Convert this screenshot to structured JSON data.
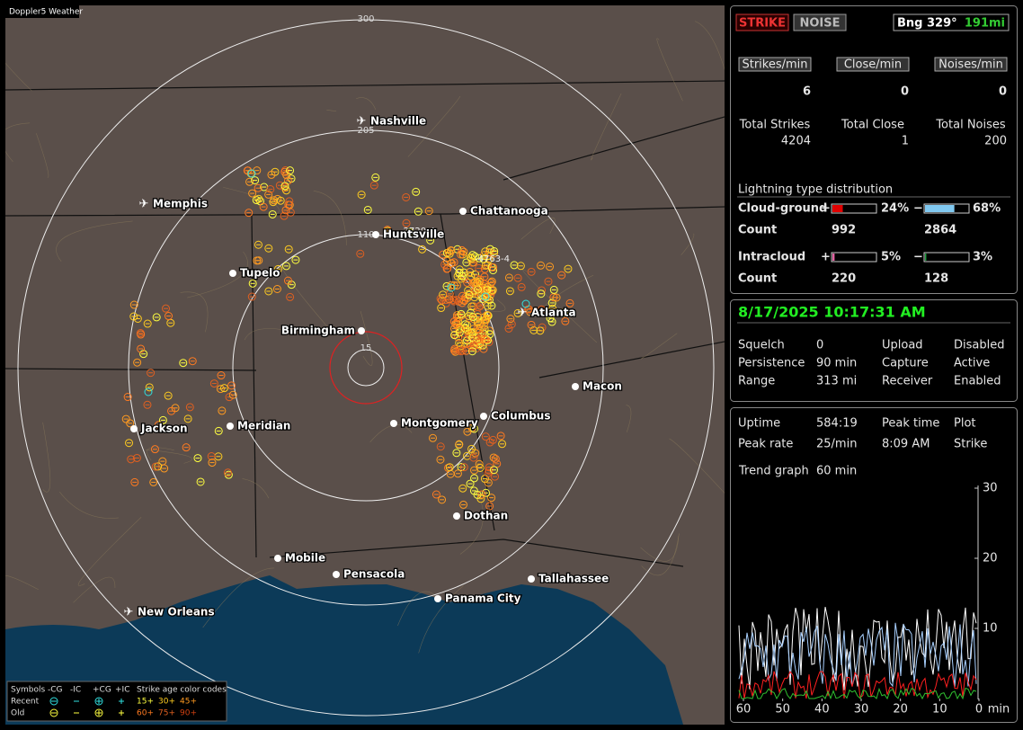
{
  "map": {
    "title": "Doppler5 Weather",
    "ring_labels": [
      "300",
      "205",
      "110",
      "15"
    ],
    "cities": [
      "Nashville",
      "Memphis",
      "Chattanooga",
      "Huntsville",
      "Tupelo",
      "Birmingham",
      "Atlanta",
      "Macon",
      "Montgomery",
      "Columbus",
      "Jackson",
      "Meridian",
      "Dothan",
      "Mobile",
      "Pensacola",
      "Tallahassee",
      "Panama City",
      "New Orleans"
    ],
    "strike_labels": [
      "-2720-4",
      "-4763-4"
    ]
  },
  "legend": {
    "symbols": "Symbols",
    "columns": [
      "-CG",
      "-IC",
      "+CG",
      "+IC"
    ],
    "age_title": "Strike age color codes",
    "recent": "Recent",
    "old": "Old",
    "recent_ages": [
      "15+",
      "30+",
      "45+"
    ],
    "old_ages": [
      "60+",
      "75+",
      "90+"
    ]
  },
  "panel": {
    "strike_button": "STRIKE",
    "noise_button": "NOISE",
    "bearing": "Bng 329°",
    "distance": "191mi",
    "rates": [
      {
        "label": "Strikes/min",
        "value": 6
      },
      {
        "label": "Close/min",
        "value": 0
      },
      {
        "label": "Noises/min",
        "value": 0
      }
    ],
    "totals": [
      {
        "label": "Total Strikes",
        "value": 4204
      },
      {
        "label": "Total Close",
        "value": 1
      },
      {
        "label": "Total Noises",
        "value": 200
      }
    ],
    "distribution_title": "Lightning type distribution",
    "distribution": [
      {
        "label": "Cloud-ground",
        "pos_sign": "+",
        "pos_pct": 24,
        "pos_pct_label": "24%",
        "neg_sign": "−",
        "neg_pct": 68,
        "neg_pct_label": "68%",
        "count_label": "Count",
        "pos_count": 992,
        "neg_count": 2864
      },
      {
        "label": "Intracloud",
        "pos_sign": "+",
        "pos_pct": 5,
        "pos_pct_label": "5%",
        "neg_sign": "−",
        "neg_pct": 3,
        "neg_pct_label": "3%",
        "count_label": "Count",
        "pos_count": 220,
        "neg_count": 128
      }
    ]
  },
  "status": {
    "datetime": "8/17/2025 10:17:31 AM",
    "rows": [
      [
        "Squelch",
        "0",
        "Upload",
        "Disabled"
      ],
      [
        "Persistence",
        "90 min",
        "Capture",
        "Active"
      ],
      [
        "Range",
        "313 mi",
        "Receiver",
        "Enabled"
      ]
    ]
  },
  "stats": {
    "rows": [
      [
        "Uptime",
        "584:19",
        "Peak time",
        "Plot"
      ],
      [
        "Peak rate",
        "25/min",
        "8:09 AM",
        "Strike"
      ]
    ],
    "trend_label": "Trend graph",
    "trend_span": "60 min",
    "yticks": [
      30,
      20,
      10
    ],
    "xticks": [
      60,
      50,
      40,
      30,
      20,
      10,
      0
    ],
    "x_unit": "min"
  }
}
